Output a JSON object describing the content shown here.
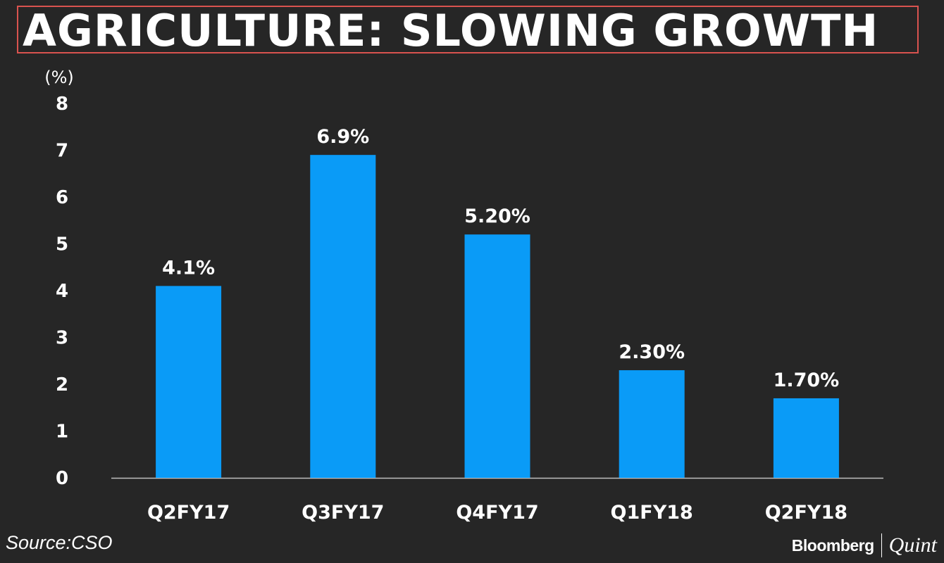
{
  "title": "AGRICULTURE: SLOWING GROWTH",
  "source": "Source:CSO",
  "brand": {
    "primary": "Bloomberg",
    "secondary": "Quint"
  },
  "colors": {
    "bar": "#0a9bf7",
    "background": "#262626",
    "title_border": "#d9534f",
    "text": "#ffffff"
  },
  "chart_data": {
    "type": "bar",
    "title": "AGRICULTURE: SLOWING GROWTH",
    "ylabel": "(%)",
    "xlabel": "",
    "categories": [
      "Q2FY17",
      "Q3FY17",
      "Q4FY17",
      "Q1FY18",
      "Q2FY18"
    ],
    "values": [
      4.1,
      6.9,
      5.2,
      2.3,
      1.7
    ],
    "data_labels": [
      "4.1%",
      "6.9%",
      "5.20%",
      "2.30%",
      "1.70%"
    ],
    "ylim": [
      0,
      8
    ],
    "yticks": [
      "0",
      "1",
      "2",
      "3",
      "4",
      "5",
      "6",
      "7",
      "8"
    ],
    "grid": false,
    "legend": "none"
  }
}
